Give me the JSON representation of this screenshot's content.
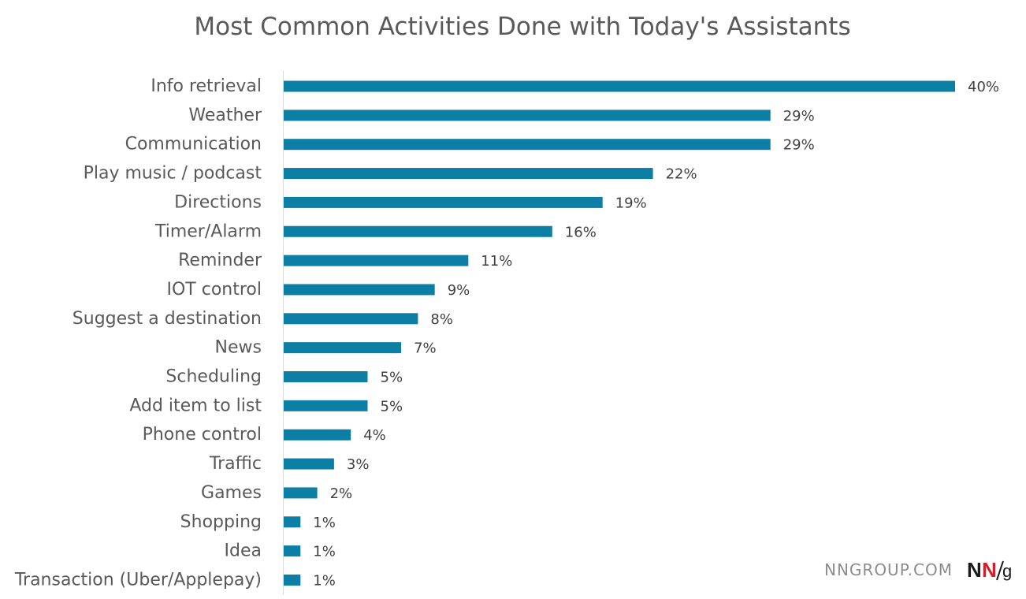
{
  "chart_data": {
    "type": "bar",
    "orientation": "horizontal",
    "title": "Most Common Activities Done with Today's Assistants",
    "xlabel": "",
    "ylabel": "",
    "xlim": [
      0,
      40
    ],
    "grid": false,
    "bar_color": "#0d7fa5",
    "categories": [
      "Info retrieval",
      "Weather",
      "Communication",
      "Play music / podcast",
      "Directions",
      "Timer/Alarm",
      "Reminder",
      "IOT control",
      "Suggest a destination",
      "News",
      "Scheduling",
      "Add item to list",
      "Phone control",
      "Traffic",
      "Games",
      "Shopping",
      "Idea",
      "Transaction (Uber/Applepay)"
    ],
    "values": [
      40,
      29,
      29,
      22,
      19,
      16,
      11,
      9,
      8,
      7,
      5,
      5,
      4,
      3,
      2,
      1,
      1,
      1
    ],
    "value_labels": [
      "40%",
      "29%",
      "29%",
      "22%",
      "19%",
      "16%",
      "11%",
      "9%",
      "8%",
      "7%",
      "5%",
      "5%",
      "4%",
      "3%",
      "2%",
      "1%",
      "1%",
      "1%"
    ]
  },
  "watermark": {
    "text": "NNGROUP.COM",
    "logo_text": "NN/g",
    "logo_colors": {
      "n1": "#1a1a1a",
      "n2": "#d0202e"
    }
  }
}
